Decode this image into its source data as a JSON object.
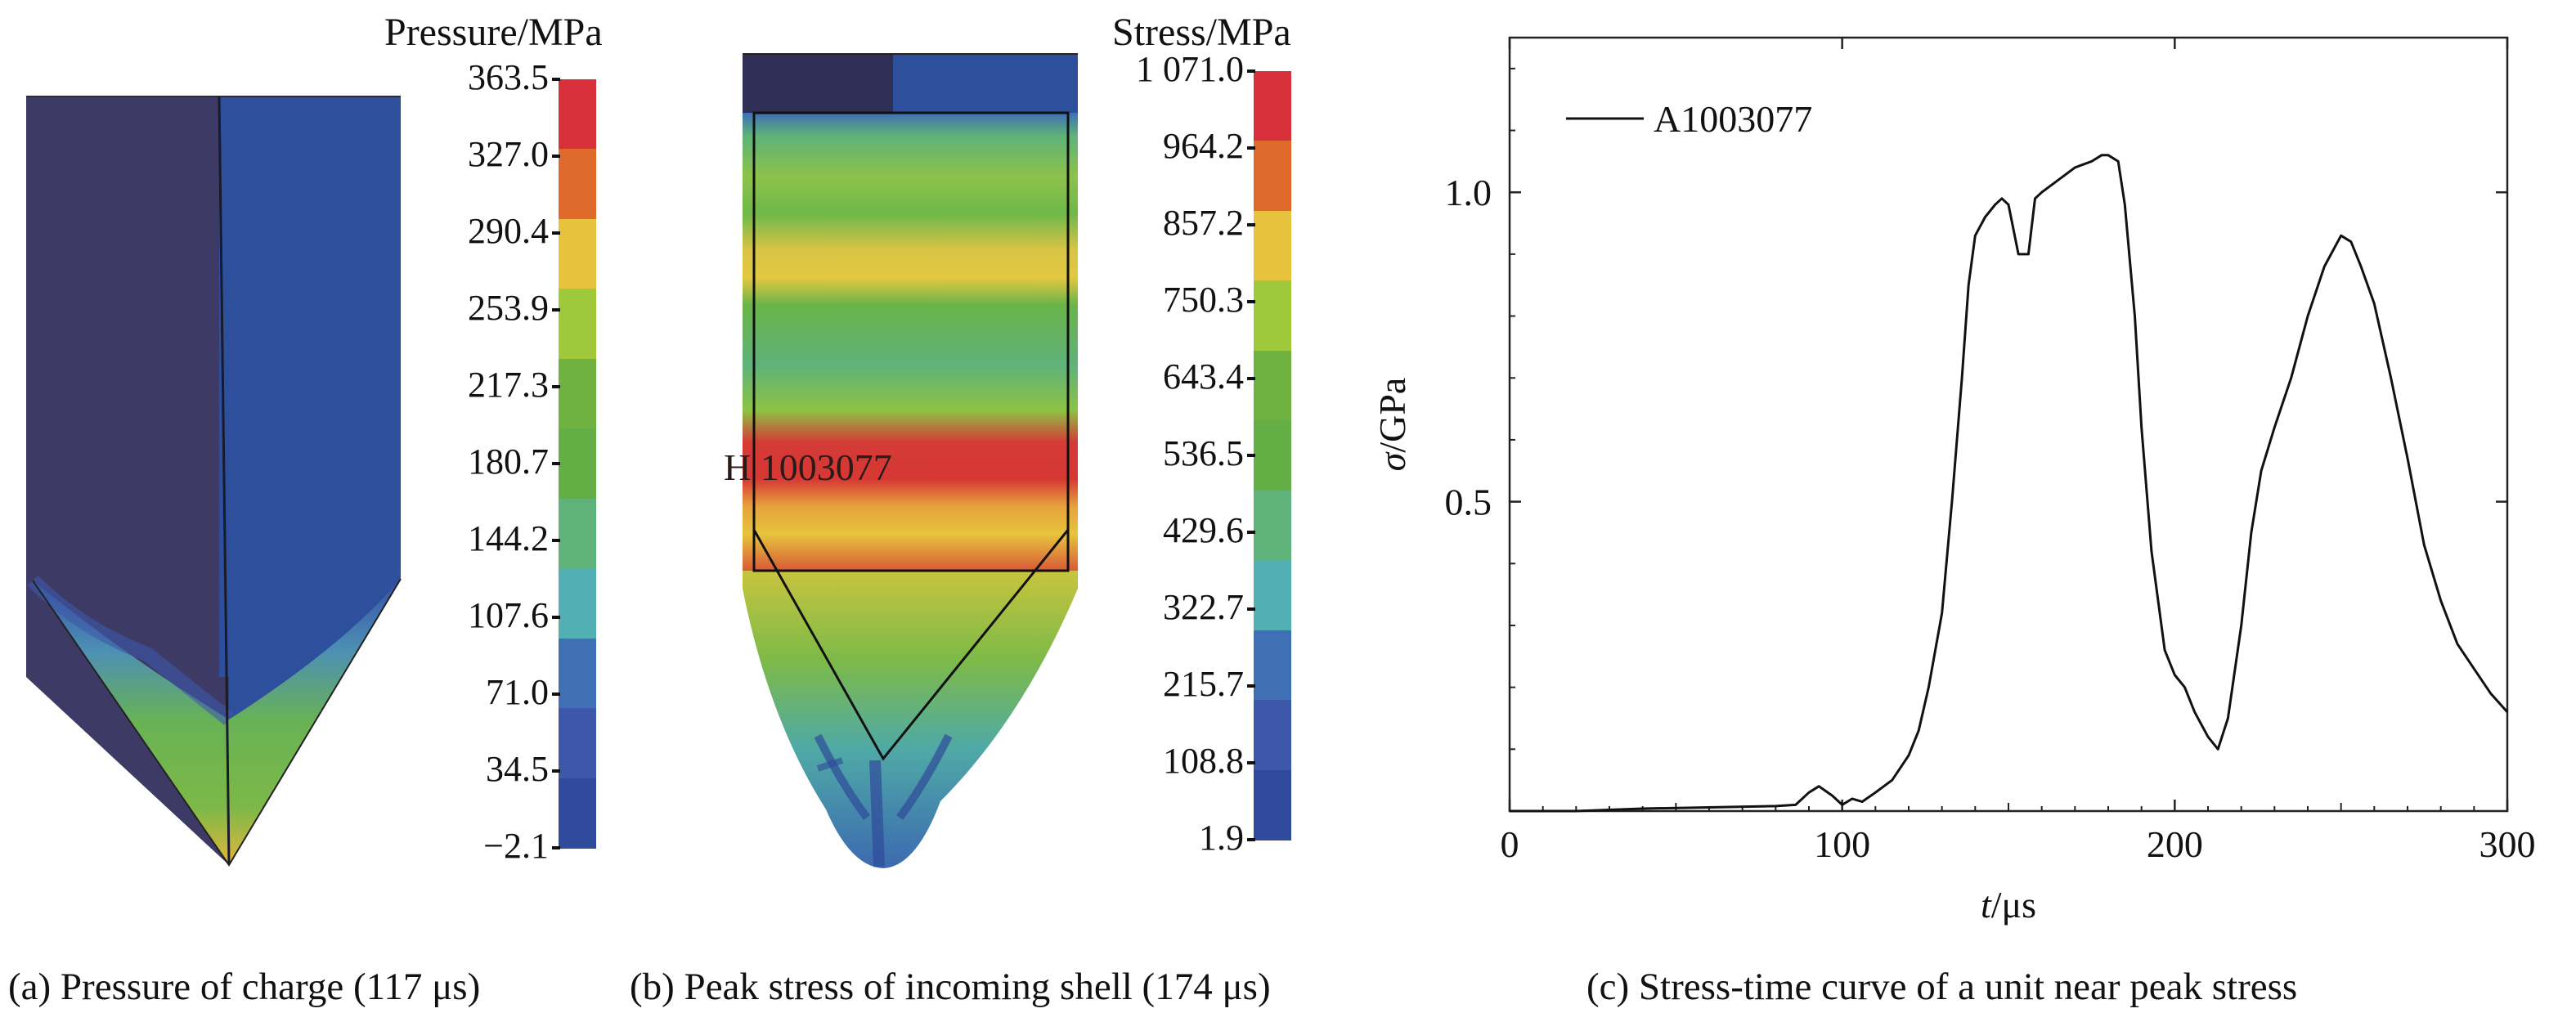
{
  "panel_a": {
    "title": "Pressure/MPa",
    "legend_labels": [
      "363.5",
      "327.0",
      "290.4",
      "253.9",
      "217.3",
      "180.7",
      "144.2",
      "107.6",
      "71.0",
      "34.5",
      "−2.1"
    ],
    "legend_colors": [
      "#d8303a",
      "#e06a2c",
      "#e7c23c",
      "#9fc93a",
      "#70b240",
      "#64ae46",
      "#5fb27a",
      "#52b0b5",
      "#3f6fb4",
      "#3d58a8",
      "#2f4a9a"
    ],
    "caption": "(a) Pressure of charge (117 μs)"
  },
  "panel_b": {
    "title": "Stress/MPa",
    "legend_labels": [
      "1 071.0",
      "964.2",
      "857.2",
      "750.3",
      "643.4",
      "536.5",
      "429.6",
      "322.7",
      "215.7",
      "108.8",
      "1.9"
    ],
    "legend_colors": [
      "#d8303a",
      "#e06a2c",
      "#e7c23c",
      "#9fc93a",
      "#70b240",
      "#64ae46",
      "#5fb27a",
      "#52b0b5",
      "#3f6fb4",
      "#3d58a8",
      "#2f4a9a"
    ],
    "element_label": "H 1003077",
    "caption": "(b)  Peak stress of incoming shell (174 μs)"
  },
  "panel_c": {
    "caption": "(c) Stress-time curve of a unit near peak stress"
  },
  "chart_data": {
    "type": "line",
    "xlabel_italic": "t",
    "xlabel_rest": "/μs",
    "ylabel_italic": "σ",
    "ylabel_rest": "/GPa",
    "xlim": [
      0,
      300
    ],
    "ylim": [
      0,
      1.25
    ],
    "xticks": [
      "0",
      "100",
      "200",
      "300"
    ],
    "yticks": [
      "0.5",
      "1.0"
    ],
    "series": [
      {
        "name": "A1003077",
        "x": [
          0,
          20,
          40,
          60,
          80,
          86,
          90,
          93,
          97,
          100,
          103,
          106,
          110,
          115,
          120,
          123,
          126,
          130,
          133,
          136,
          138,
          140,
          143,
          146,
          148,
          150,
          153,
          156,
          158,
          160,
          165,
          170,
          175,
          178,
          180,
          183,
          185,
          188,
          190,
          193,
          197,
          200,
          203,
          206,
          210,
          213,
          216,
          220,
          223,
          226,
          230,
          235,
          240,
          245,
          248,
          250,
          253,
          256,
          260,
          265,
          270,
          275,
          280,
          285,
          290,
          295,
          300
        ],
        "y": [
          0.0,
          0.0,
          0.004,
          0.006,
          0.008,
          0.01,
          0.03,
          0.04,
          0.025,
          0.01,
          0.02,
          0.015,
          0.03,
          0.05,
          0.09,
          0.13,
          0.2,
          0.32,
          0.5,
          0.7,
          0.85,
          0.93,
          0.96,
          0.98,
          0.99,
          0.98,
          0.9,
          0.9,
          0.99,
          1.0,
          1.02,
          1.04,
          1.05,
          1.06,
          1.06,
          1.05,
          0.98,
          0.8,
          0.62,
          0.42,
          0.26,
          0.22,
          0.2,
          0.16,
          0.12,
          0.1,
          0.15,
          0.3,
          0.45,
          0.55,
          0.62,
          0.7,
          0.8,
          0.88,
          0.91,
          0.93,
          0.92,
          0.88,
          0.82,
          0.7,
          0.57,
          0.43,
          0.34,
          0.27,
          0.23,
          0.19,
          0.16
        ]
      }
    ]
  }
}
